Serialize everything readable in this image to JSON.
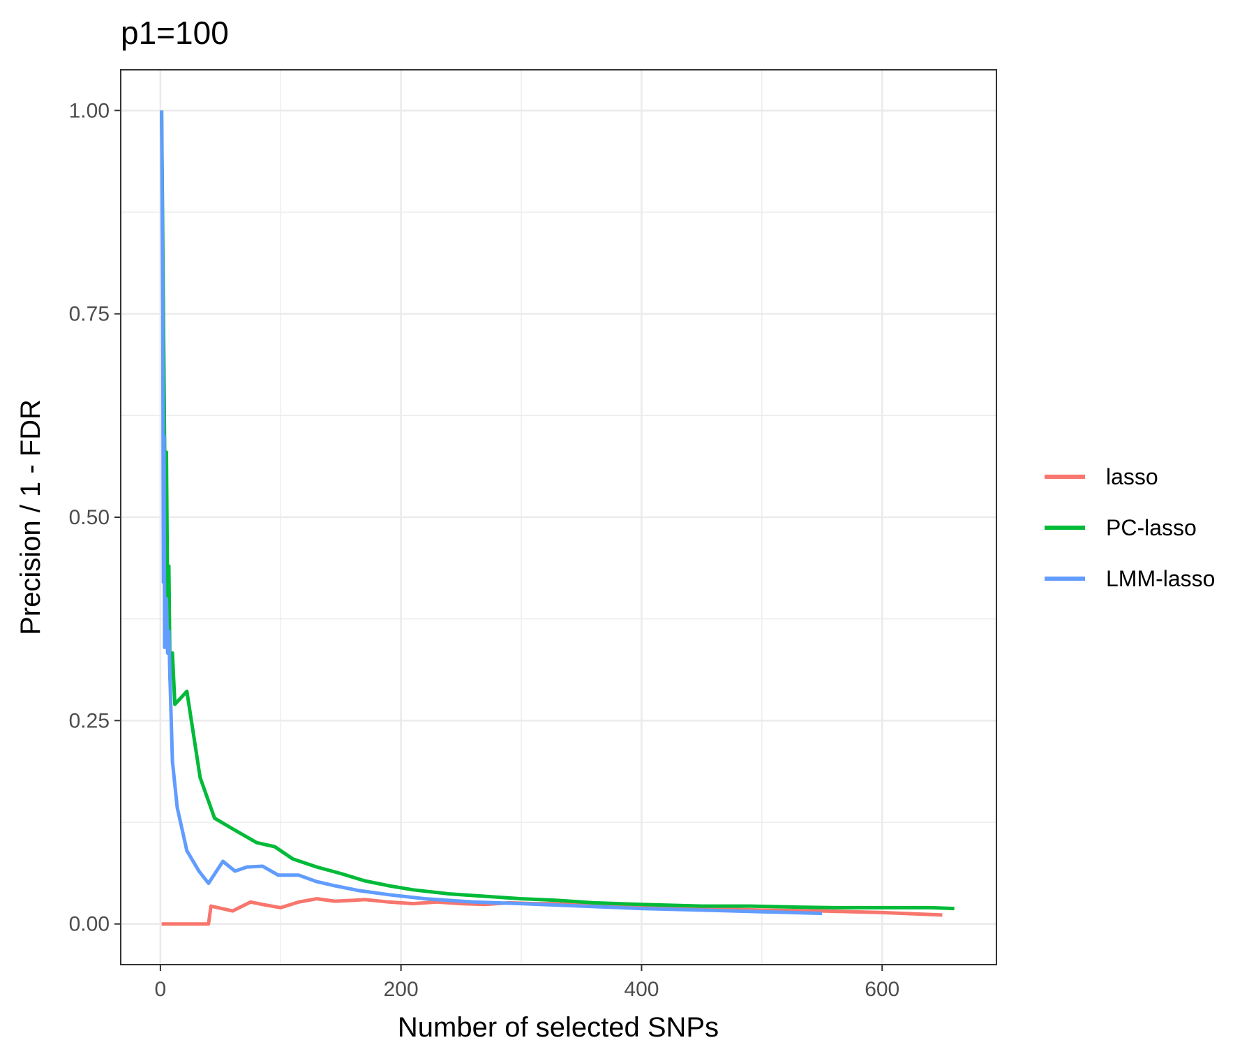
{
  "chart_data": {
    "type": "line",
    "title": "p1=100",
    "xlabel": "Number of selected SNPs",
    "ylabel": "Precision / 1 - FDR",
    "xlim": [
      -33,
      695
    ],
    "ylim": [
      -0.05,
      1.05
    ],
    "xticks": [
      0,
      200,
      400,
      600
    ],
    "xtick_labels": [
      "0",
      "200",
      "400",
      "600"
    ],
    "yticks": [
      0,
      0.25,
      0.5,
      0.75,
      1.0
    ],
    "ytick_labels": [
      "0.00",
      "0.25",
      "0.50",
      "0.75",
      "1.00"
    ],
    "grid": true,
    "legend_position": "right",
    "series": [
      {
        "name": "lasso",
        "color": "#F8766D",
        "points": [
          [
            1,
            0.0
          ],
          [
            40,
            0.0
          ],
          [
            42,
            0.022
          ],
          [
            48,
            0.02
          ],
          [
            60,
            0.016
          ],
          [
            75,
            0.027
          ],
          [
            85,
            0.024
          ],
          [
            100,
            0.02
          ],
          [
            115,
            0.027
          ],
          [
            130,
            0.031
          ],
          [
            145,
            0.028
          ],
          [
            160,
            0.029
          ],
          [
            170,
            0.03
          ],
          [
            190,
            0.027
          ],
          [
            210,
            0.025
          ],
          [
            230,
            0.027
          ],
          [
            250,
            0.025
          ],
          [
            270,
            0.024
          ],
          [
            290,
            0.026
          ],
          [
            310,
            0.025
          ],
          [
            330,
            0.025
          ],
          [
            350,
            0.023
          ],
          [
            400,
            0.021
          ],
          [
            450,
            0.019
          ],
          [
            500,
            0.017
          ],
          [
            550,
            0.016
          ],
          [
            600,
            0.014
          ],
          [
            650,
            0.011
          ]
        ]
      },
      {
        "name": "PC-lasso",
        "color": "#00BA38",
        "points": [
          [
            1,
            1.0
          ],
          [
            3,
            0.667
          ],
          [
            4,
            0.5
          ],
          [
            5,
            0.58
          ],
          [
            6,
            0.4
          ],
          [
            7,
            0.44
          ],
          [
            8,
            0.3
          ],
          [
            10,
            0.333
          ],
          [
            12,
            0.27
          ],
          [
            22,
            0.286
          ],
          [
            33,
            0.18
          ],
          [
            45,
            0.13
          ],
          [
            60,
            0.117
          ],
          [
            80,
            0.1
          ],
          [
            95,
            0.095
          ],
          [
            110,
            0.08
          ],
          [
            130,
            0.07
          ],
          [
            150,
            0.062
          ],
          [
            170,
            0.053
          ],
          [
            190,
            0.047
          ],
          [
            210,
            0.042
          ],
          [
            240,
            0.037
          ],
          [
            270,
            0.034
          ],
          [
            300,
            0.031
          ],
          [
            330,
            0.029
          ],
          [
            360,
            0.026
          ],
          [
            400,
            0.024
          ],
          [
            450,
            0.022
          ],
          [
            490,
            0.022
          ],
          [
            520,
            0.021
          ],
          [
            560,
            0.02
          ],
          [
            600,
            0.02
          ],
          [
            640,
            0.02
          ],
          [
            660,
            0.019
          ]
        ]
      },
      {
        "name": "LMM-lasso",
        "color": "#619CFF",
        "points": [
          [
            1,
            1.0
          ],
          [
            2,
            0.75
          ],
          [
            2.5,
            0.42
          ],
          [
            3,
            0.6
          ],
          [
            3.5,
            0.34
          ],
          [
            5,
            0.4
          ],
          [
            6,
            0.333
          ],
          [
            7,
            0.36
          ],
          [
            8,
            0.3
          ],
          [
            10,
            0.2
          ],
          [
            14,
            0.143
          ],
          [
            22,
            0.09
          ],
          [
            32,
            0.065
          ],
          [
            40,
            0.05
          ],
          [
            52,
            0.077
          ],
          [
            62,
            0.065
          ],
          [
            72,
            0.07
          ],
          [
            85,
            0.071
          ],
          [
            98,
            0.06
          ],
          [
            115,
            0.06
          ],
          [
            130,
            0.052
          ],
          [
            145,
            0.047
          ],
          [
            165,
            0.041
          ],
          [
            190,
            0.036
          ],
          [
            220,
            0.031
          ],
          [
            260,
            0.027
          ],
          [
            300,
            0.025
          ],
          [
            350,
            0.022
          ],
          [
            400,
            0.019
          ],
          [
            450,
            0.017
          ],
          [
            500,
            0.015
          ],
          [
            550,
            0.013
          ]
        ]
      }
    ]
  }
}
